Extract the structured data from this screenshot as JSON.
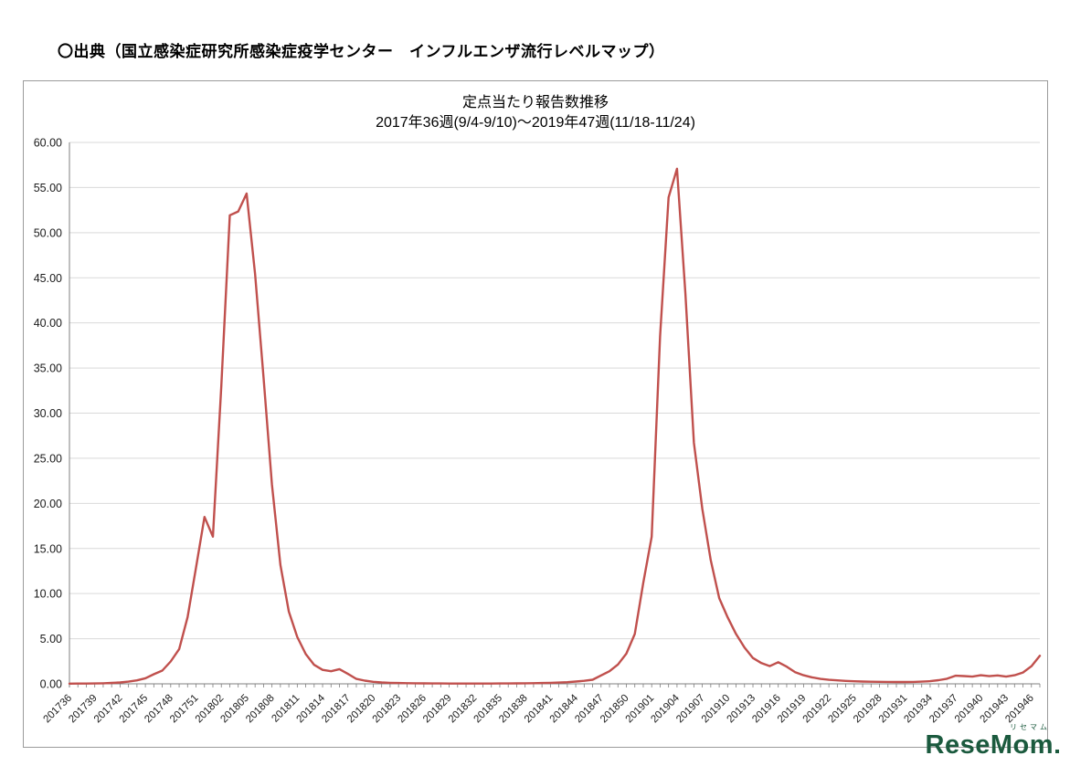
{
  "page": {
    "heading": "〇出典（国立感染症研究所感染症疫学センター　インフルエンザ流行レベルマップ）"
  },
  "watermark": {
    "brand": "ReseMom",
    "kana": "リセマム"
  },
  "chart_data": {
    "type": "line",
    "title": "定点当たり報告数推移",
    "subtitle": "2017年36週(9/4-9/10)～2019年47週(11/18-11/24)",
    "xlabel": "",
    "ylabel": "",
    "ylim": [
      0,
      60
    ],
    "y_tick_step": 5,
    "grid": true,
    "legend": false,
    "line_color": "#C0504D",
    "grid_color": "#d9d9d9",
    "axis_color": "#7f7f7f",
    "x": [
      "201736",
      "201737",
      "201738",
      "201739",
      "201740",
      "201741",
      "201742",
      "201743",
      "201744",
      "201745",
      "201746",
      "201747",
      "201748",
      "201749",
      "201750",
      "201751",
      "201752",
      "201801",
      "201802",
      "201803",
      "201804",
      "201805",
      "201806",
      "201807",
      "201808",
      "201809",
      "201810",
      "201811",
      "201812",
      "201813",
      "201814",
      "201815",
      "201816",
      "201817",
      "201818",
      "201819",
      "201820",
      "201821",
      "201822",
      "201823",
      "201824",
      "201825",
      "201826",
      "201827",
      "201828",
      "201829",
      "201830",
      "201831",
      "201832",
      "201833",
      "201834",
      "201835",
      "201836",
      "201837",
      "201838",
      "201839",
      "201840",
      "201841",
      "201842",
      "201843",
      "201844",
      "201845",
      "201846",
      "201847",
      "201848",
      "201849",
      "201850",
      "201851",
      "201852",
      "201901",
      "201902",
      "201903",
      "201904",
      "201905",
      "201906",
      "201907",
      "201908",
      "201909",
      "201910",
      "201911",
      "201912",
      "201913",
      "201914",
      "201915",
      "201916",
      "201917",
      "201918",
      "201919",
      "201920",
      "201921",
      "201922",
      "201923",
      "201924",
      "201925",
      "201926",
      "201927",
      "201928",
      "201929",
      "201930",
      "201931",
      "201932",
      "201933",
      "201934",
      "201935",
      "201936",
      "201937",
      "201938",
      "201939",
      "201940",
      "201941",
      "201942",
      "201943",
      "201944",
      "201945",
      "201946",
      "201947"
    ],
    "values": [
      0.02,
      0.03,
      0.03,
      0.04,
      0.06,
      0.1,
      0.15,
      0.24,
      0.38,
      0.62,
      1.06,
      1.47,
      2.48,
      3.85,
      7.4,
      12.87,
      18.5,
      16.31,
      33.0,
      51.93,
      52.35,
      54.33,
      45.38,
      33.98,
      22.1,
      13.16,
      8.0,
      5.2,
      3.3,
      2.1,
      1.55,
      1.4,
      1.63,
      1.1,
      0.55,
      0.35,
      0.22,
      0.15,
      0.11,
      0.09,
      0.07,
      0.06,
      0.05,
      0.04,
      0.04,
      0.03,
      0.03,
      0.03,
      0.03,
      0.03,
      0.03,
      0.04,
      0.04,
      0.05,
      0.06,
      0.07,
      0.09,
      0.11,
      0.14,
      0.18,
      0.25,
      0.33,
      0.46,
      0.93,
      1.4,
      2.15,
      3.35,
      5.52,
      11.2,
      16.3,
      38.54,
      53.91,
      57.09,
      43.24,
      26.71,
      19.4,
      13.72,
      9.5,
      7.38,
      5.52,
      4.02,
      2.86,
      2.3,
      1.96,
      2.4,
      1.9,
      1.3,
      0.95,
      0.72,
      0.55,
      0.45,
      0.38,
      0.32,
      0.28,
      0.25,
      0.23,
      0.22,
      0.21,
      0.2,
      0.2,
      0.21,
      0.24,
      0.29,
      0.4,
      0.57,
      0.9,
      0.86,
      0.8,
      0.95,
      0.85,
      0.93,
      0.8,
      0.95,
      1.25,
      1.95,
      3.11
    ],
    "x_tick_labels": [
      "201736",
      "201739",
      "201742",
      "201745",
      "201748",
      "201751",
      "201802",
      "201805",
      "201808",
      "201811",
      "201814",
      "201817",
      "201820",
      "201823",
      "201826",
      "201829",
      "201832",
      "201835",
      "201838",
      "201841",
      "201844",
      "201847",
      "201850",
      "201901",
      "201904",
      "201907",
      "201910",
      "201913",
      "201916",
      "201919",
      "201922",
      "201925",
      "201928",
      "201931",
      "201934",
      "201937",
      "201940",
      "201943",
      "201946"
    ]
  }
}
